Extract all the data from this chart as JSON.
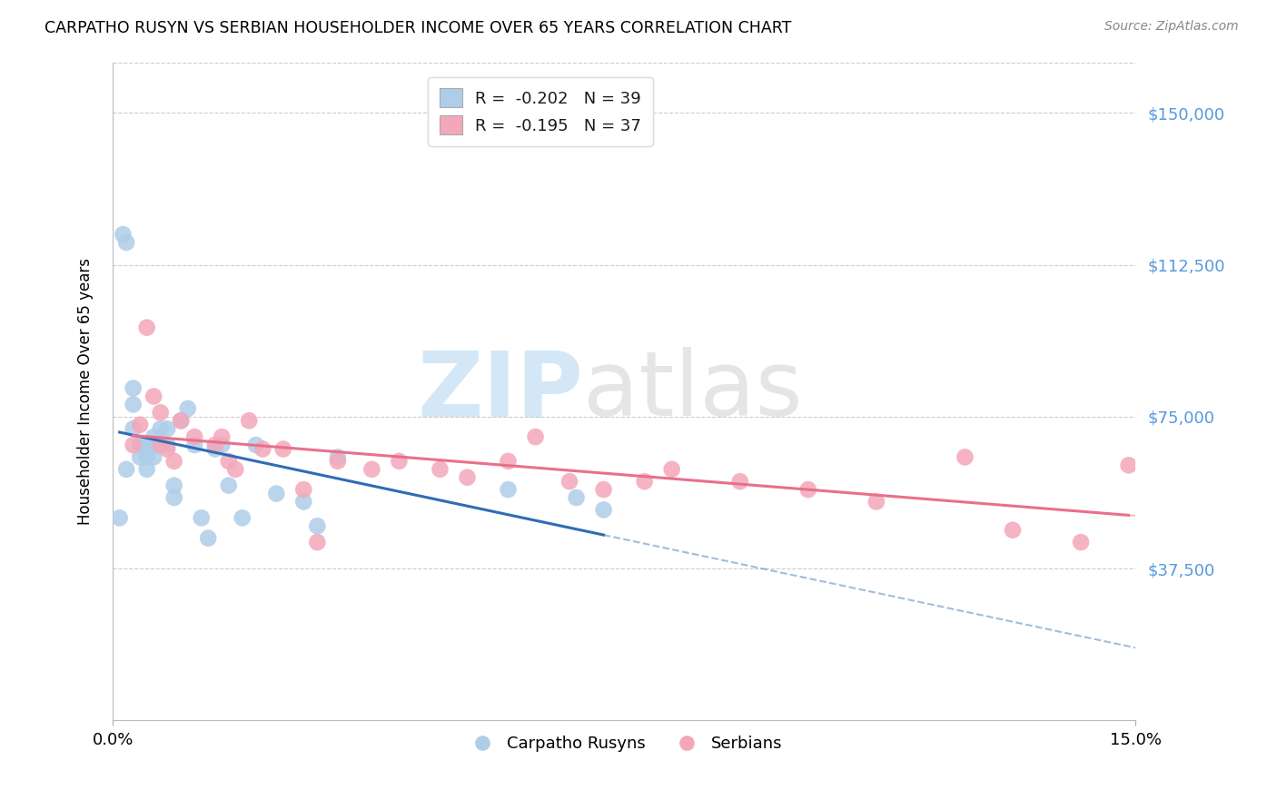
{
  "title": "CARPATHO RUSYN VS SERBIAN HOUSEHOLDER INCOME OVER 65 YEARS CORRELATION CHART",
  "source": "Source: ZipAtlas.com",
  "ylabel": "Householder Income Over 65 years",
  "xlim": [
    0.0,
    0.15
  ],
  "ylim": [
    0,
    162500
  ],
  "r_rusyn": -0.202,
  "n_rusyn": 39,
  "r_serbian": -0.195,
  "n_serbian": 37,
  "rusyn_color": "#aecde8",
  "serbian_color": "#f4a7b9",
  "rusyn_line_color": "#2e6db4",
  "serbian_line_color": "#e8708a",
  "rusyn_x": [
    0.001,
    0.0015,
    0.002,
    0.002,
    0.003,
    0.003,
    0.003,
    0.004,
    0.004,
    0.005,
    0.005,
    0.005,
    0.005,
    0.006,
    0.006,
    0.006,
    0.007,
    0.007,
    0.008,
    0.008,
    0.009,
    0.009,
    0.01,
    0.011,
    0.012,
    0.013,
    0.014,
    0.015,
    0.016,
    0.017,
    0.019,
    0.021,
    0.024,
    0.028,
    0.03,
    0.033,
    0.058,
    0.068,
    0.072
  ],
  "rusyn_y": [
    50000,
    120000,
    118000,
    62000,
    82000,
    78000,
    72000,
    68000,
    65000,
    68000,
    67000,
    65000,
    62000,
    70000,
    68000,
    65000,
    72000,
    68000,
    72000,
    68000,
    58000,
    55000,
    74000,
    77000,
    68000,
    50000,
    45000,
    67000,
    68000,
    58000,
    50000,
    68000,
    56000,
    54000,
    48000,
    65000,
    57000,
    55000,
    52000
  ],
  "serbian_x": [
    0.003,
    0.004,
    0.005,
    0.006,
    0.007,
    0.007,
    0.008,
    0.009,
    0.01,
    0.012,
    0.015,
    0.016,
    0.017,
    0.018,
    0.02,
    0.022,
    0.025,
    0.028,
    0.03,
    0.033,
    0.038,
    0.042,
    0.048,
    0.052,
    0.058,
    0.062,
    0.067,
    0.072,
    0.078,
    0.082,
    0.092,
    0.102,
    0.112,
    0.125,
    0.132,
    0.142,
    0.149
  ],
  "serbian_y": [
    68000,
    73000,
    97000,
    80000,
    76000,
    68000,
    67000,
    64000,
    74000,
    70000,
    68000,
    70000,
    64000,
    62000,
    74000,
    67000,
    67000,
    57000,
    44000,
    64000,
    62000,
    64000,
    62000,
    60000,
    64000,
    70000,
    59000,
    57000,
    59000,
    62000,
    59000,
    57000,
    54000,
    65000,
    47000,
    44000,
    63000
  ]
}
